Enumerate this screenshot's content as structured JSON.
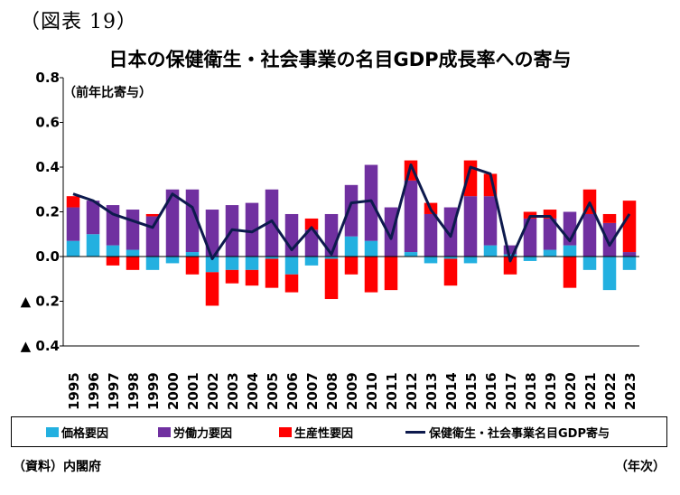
{
  "figure_label": "（図表 19）",
  "source_note": "（資料）内閣府",
  "x_unit": "（年次）",
  "colors": {
    "price": "#23b0e0",
    "labor": "#7030a0",
    "productivity": "#ff0000",
    "line": "#0d1a4d"
  },
  "chart_data": {
    "type": "bar",
    "stacked": true,
    "title": "日本の保健衛生・社会事業の名目GDP成長率への寄与",
    "ylabel": "（前年比寄与）",
    "xlabel": "（年次）",
    "ylim": [
      -0.4,
      0.8
    ],
    "yticks": [
      0.8,
      0.6,
      0.4,
      0.2,
      0.0,
      -0.2,
      -0.4
    ],
    "ytick_labels": [
      "0.8",
      "0.6",
      "0.4",
      "0.2",
      "0.0",
      "▲ 0.2",
      "▲ 0.4"
    ],
    "categories": [
      "1995",
      "1996",
      "1997",
      "1998",
      "1999",
      "2000",
      "2001",
      "2002",
      "2003",
      "2004",
      "2005",
      "2006",
      "2007",
      "2008",
      "2009",
      "2010",
      "2011",
      "2012",
      "2013",
      "2014",
      "2015",
      "2016",
      "2017",
      "2018",
      "2019",
      "2020",
      "2021",
      "2022",
      "2023"
    ],
    "legend_position": "bottom",
    "series": [
      {
        "name": "価格要因",
        "kind": "bar",
        "values": [
          0.07,
          0.1,
          0.05,
          0.03,
          -0.06,
          -0.03,
          0.02,
          -0.07,
          -0.06,
          -0.06,
          -0.01,
          -0.08,
          -0.04,
          -0.01,
          0.09,
          0.07,
          0.0,
          0.02,
          -0.03,
          -0.01,
          -0.03,
          0.05,
          0.01,
          -0.02,
          0.03,
          0.05,
          -0.06,
          -0.15,
          -0.06
        ]
      },
      {
        "name": "労働力要因",
        "kind": "bar",
        "values": [
          0.15,
          0.15,
          0.18,
          0.18,
          0.18,
          0.3,
          0.28,
          0.21,
          0.23,
          0.24,
          0.3,
          0.19,
          0.12,
          0.19,
          0.23,
          0.34,
          0.22,
          0.32,
          0.19,
          0.22,
          0.27,
          0.22,
          0.04,
          0.17,
          0.14,
          0.15,
          0.19,
          0.15,
          0.02
        ]
      },
      {
        "name": "生産性要因",
        "kind": "bar",
        "values": [
          0.05,
          0.0,
          -0.04,
          -0.06,
          0.01,
          0.0,
          -0.08,
          -0.15,
          -0.06,
          -0.07,
          -0.13,
          -0.08,
          0.05,
          -0.18,
          -0.08,
          -0.16,
          -0.15,
          0.09,
          0.05,
          -0.12,
          0.16,
          0.1,
          -0.08,
          0.03,
          0.04,
          -0.14,
          0.11,
          0.04,
          0.23
        ]
      },
      {
        "name": "保健衛生・社会事業名目GDP寄与",
        "kind": "line",
        "values": [
          0.28,
          0.25,
          0.19,
          0.16,
          0.13,
          0.28,
          0.22,
          -0.01,
          0.12,
          0.11,
          0.16,
          0.03,
          0.13,
          0.01,
          0.24,
          0.25,
          0.08,
          0.41,
          0.21,
          0.09,
          0.4,
          0.37,
          -0.02,
          0.18,
          0.18,
          0.07,
          0.24,
          0.05,
          0.19
        ]
      }
    ]
  }
}
